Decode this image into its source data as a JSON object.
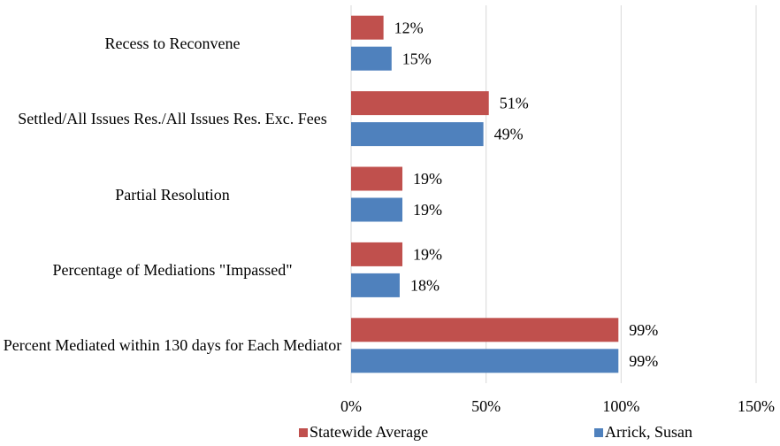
{
  "chart_data": {
    "type": "bar",
    "orientation": "horizontal",
    "categories": [
      "Recess to Reconvene",
      "Settled/All Issues Res./All Issues Res. Exc. Fees",
      "Partial Resolution",
      "Percentage of Mediations \"Impassed\"",
      "Percent Mediated within 130 days for Each Mediator"
    ],
    "series": [
      {
        "name": "Statewide Average",
        "color": "#c0504d",
        "values": [
          12,
          51,
          19,
          19,
          99
        ],
        "value_labels": [
          "12%",
          "51%",
          "19%",
          "19%",
          "99%"
        ]
      },
      {
        "name": "Arrick, Susan",
        "color": "#4f81bd",
        "values": [
          15,
          49,
          19,
          18,
          99
        ],
        "value_labels": [
          "15%",
          "49%",
          "19%",
          "18%",
          "99%"
        ]
      }
    ],
    "xlim": [
      0,
      150
    ],
    "xticks": [
      {
        "value": 0,
        "label": "0%"
      },
      {
        "value": 50,
        "label": "50%"
      },
      {
        "value": 100,
        "label": "100%"
      },
      {
        "value": 150,
        "label": "150%"
      }
    ],
    "grid": true,
    "legend": "bottom"
  }
}
